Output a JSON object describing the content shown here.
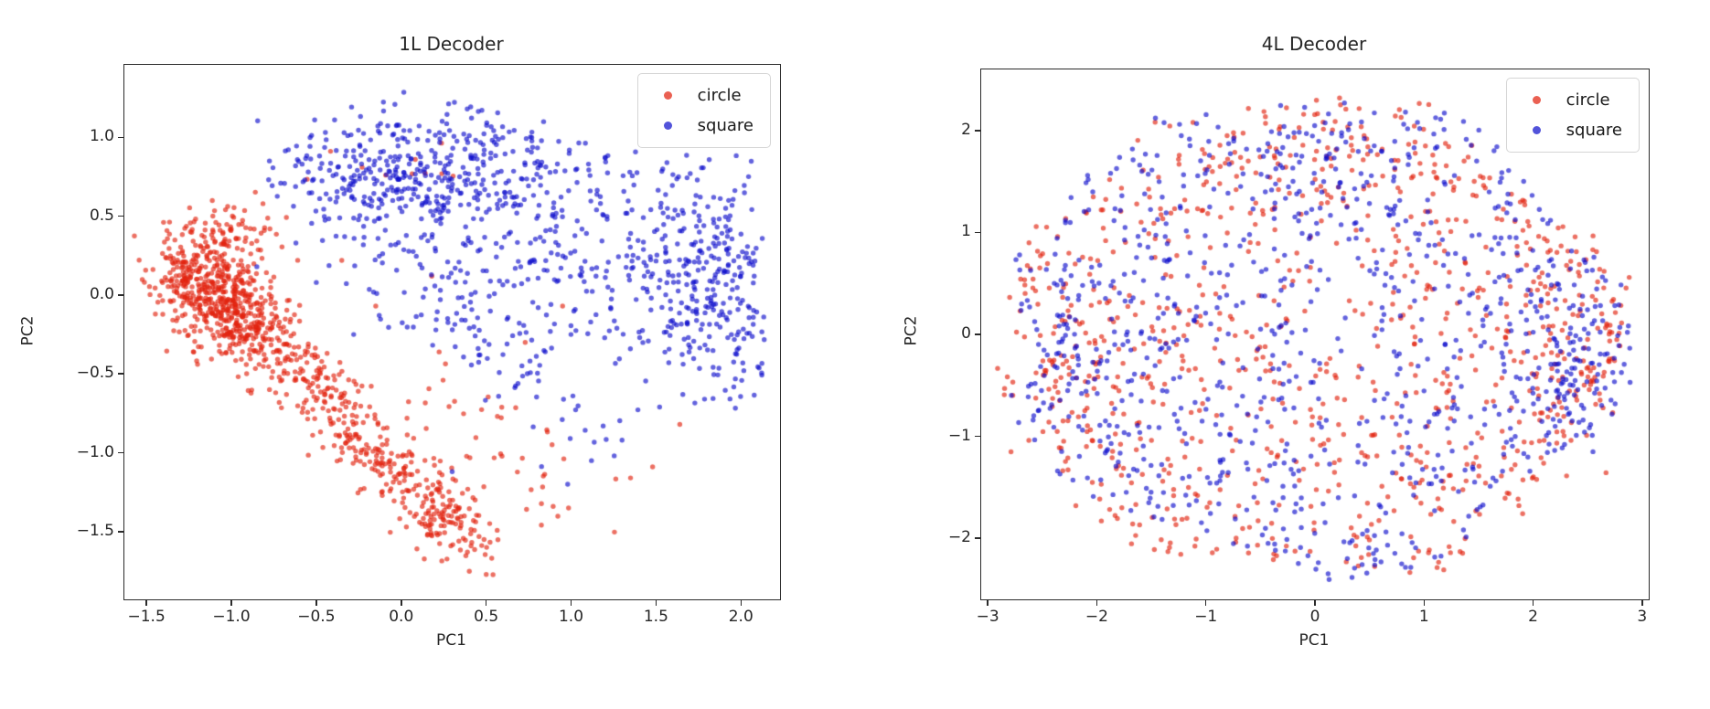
{
  "page": {
    "background": "#ffffff"
  },
  "chart_data": [
    {
      "type": "scatter",
      "title": "1L Decoder",
      "xlabel": "PC1",
      "ylabel": "PC2",
      "xlim": [
        -1.63,
        2.23
      ],
      "ylim": [
        -1.93,
        1.46
      ],
      "grid": false,
      "xticks": [
        {
          "v": -1.5,
          "label": "−1.5"
        },
        {
          "v": -1.0,
          "label": "−1.0"
        },
        {
          "v": -0.5,
          "label": "−0.5"
        },
        {
          "v": 0.0,
          "label": "0.0"
        },
        {
          "v": 0.5,
          "label": "0.5"
        },
        {
          "v": 1.0,
          "label": "1.0"
        },
        {
          "v": 1.5,
          "label": "1.5"
        },
        {
          "v": 2.0,
          "label": "2.0"
        }
      ],
      "yticks": [
        {
          "v": 1.0,
          "label": "1.0"
        },
        {
          "v": 0.5,
          "label": "0.5"
        },
        {
          "v": 0.0,
          "label": "0.0"
        },
        {
          "v": -0.5,
          "label": "−0.5"
        },
        {
          "v": -1.0,
          "label": "−1.0"
        },
        {
          "v": -1.5,
          "label": "−1.5"
        }
      ],
      "legend": {
        "position": "upper-right",
        "entries": [
          {
            "label": "circle",
            "color": "#e2230f"
          },
          {
            "label": "square",
            "color": "#0f10cc"
          }
        ]
      },
      "marker": {
        "radius": 2.7,
        "alpha": 0.65
      },
      "series": [
        {
          "name": "circle",
          "color": "#e2230f",
          "seed": 11,
          "summary": "dense blob near (-1.15,0.05) continuing as a diagonal band down to (0.45,-1.6), sparse spray to its right, few outliers inside blue cloud",
          "clusters": [
            {
              "kind": "gauss",
              "cx": -1.17,
              "cy": 0.1,
              "sx": 0.15,
              "sy": 0.16,
              "n": 320
            },
            {
              "kind": "gauss",
              "cx": -0.98,
              "cy": -0.1,
              "sx": 0.15,
              "sy": 0.14,
              "n": 170
            },
            {
              "kind": "gauss",
              "cx": -1.0,
              "cy": 0.42,
              "sx": 0.17,
              "sy": 0.1,
              "n": 50
            },
            {
              "kind": "band",
              "x1": -1.08,
              "y1": 0.0,
              "x2": 0.42,
              "y2": -1.6,
              "w": 0.11,
              "n": 560
            },
            {
              "kind": "band",
              "x1": 0.15,
              "y1": -0.5,
              "x2": 1.05,
              "y2": -1.38,
              "w": 0.17,
              "n": 42
            },
            {
              "kind": "rect",
              "x1": -0.65,
              "y1": 0.38,
              "x2": 0.35,
              "y2": 1.02,
              "n": 10
            },
            {
              "kind": "points",
              "pts": [
                [
                  0.95,
                  -0.07
                ],
                [
                  1.64,
                  -0.82
                ],
                [
                  1.48,
                  -1.09
                ],
                [
                  1.35,
                  -1.16
                ],
                [
                  0.73,
                  -0.3
                ],
                [
                  -0.35,
                  0.22
                ],
                [
                  0.18,
                  0.12
                ],
                [
                  -0.15,
                  -0.07
                ]
              ]
            }
          ]
        },
        {
          "name": "square",
          "color": "#0f10cc",
          "seed": 77,
          "summary": "large cloud filling upper right: dense ridge along top near y=0.8, broad disc centered (0.8,0.3), dense lobe at right edge near (1.85,0.0), sparse fringe below",
          "clusters": [
            {
              "kind": "gauss",
              "cx": 0.05,
              "cy": 0.78,
              "sx": 0.42,
              "sy": 0.21,
              "n": 350,
              "clip": [
                -0.85,
                0.32,
                1.0,
                1.3
              ]
            },
            {
              "kind": "blob",
              "cx": 0.78,
              "cy": 0.28,
              "rx": 1.18,
              "ry": 0.78,
              "exp": 0.62,
              "wobble": 0.05,
              "lobes": 4,
              "phase": 1.0,
              "n": 430
            },
            {
              "kind": "gauss",
              "cx": 1.83,
              "cy": 0.05,
              "sx": 0.21,
              "sy": 0.4,
              "n": 250,
              "clip": [
                1.3,
                -0.72,
                2.14,
                0.9
              ]
            },
            {
              "kind": "band",
              "x1": 0.45,
              "y1": -0.52,
              "x2": 1.42,
              "y2": -0.95,
              "w": 0.14,
              "n": 26
            },
            {
              "kind": "points",
              "pts": [
                [
                  -0.85,
                  0.18
                ],
                [
                  -0.62,
                  0.33
                ],
                [
                  -0.5,
                  0.08
                ],
                [
                  0.3,
                  -1.12
                ],
                [
                  0.98,
                  -1.2
                ],
                [
                  1.3,
                  -0.92
                ],
                [
                  1.12,
                  -1.05
                ],
                [
                  -0.28,
                  -0.25
                ]
              ]
            }
          ]
        }
      ]
    },
    {
      "type": "scatter",
      "title": "4L Decoder",
      "xlabel": "PC1",
      "ylabel": "PC2",
      "xlim": [
        -3.06,
        3.06
      ],
      "ylim": [
        -2.6,
        2.6
      ],
      "grid": false,
      "xticks": [
        {
          "v": -3,
          "label": "−3"
        },
        {
          "v": -2,
          "label": "−2"
        },
        {
          "v": -1,
          "label": "−1"
        },
        {
          "v": 0,
          "label": "0"
        },
        {
          "v": 1,
          "label": "1"
        },
        {
          "v": 2,
          "label": "2"
        },
        {
          "v": 3,
          "label": "3"
        }
      ],
      "yticks": [
        {
          "v": 2,
          "label": "2"
        },
        {
          "v": 1,
          "label": "1"
        },
        {
          "v": 0,
          "label": "0"
        },
        {
          "v": -1,
          "label": "−1"
        },
        {
          "v": -2,
          "label": "−2"
        }
      ],
      "legend": {
        "position": "upper-right",
        "entries": [
          {
            "label": "circle",
            "color": "#e2230f"
          },
          {
            "label": "square",
            "color": "#0f10cc"
          }
        ]
      },
      "marker": {
        "radius": 2.7,
        "alpha": 0.65
      },
      "series": [
        {
          "name": "circle",
          "color": "#e2230f",
          "seed": 23,
          "summary": "red and blue fully intermixed in one rim-dense irregular disc of radius ~2.6 centered near origin; extra dense patches at right edge, top arc and left edge",
          "clusters": [
            {
              "kind": "blob",
              "cx": 0.0,
              "cy": -0.1,
              "rx": 2.72,
              "ry": 2.3,
              "exp": 0.42,
              "wobble": 0.07,
              "lobes": 5,
              "phase": 0.7,
              "n": 760
            },
            {
              "kind": "gauss",
              "cx": 2.3,
              "cy": -0.2,
              "sx": 0.3,
              "sy": 0.52,
              "n": 80,
              "clip": [
                1.6,
                -1.4,
                2.95,
                1.0
              ]
            },
            {
              "kind": "gauss",
              "cx": 0.1,
              "cy": 1.85,
              "sx": 0.85,
              "sy": 0.28,
              "n": 55,
              "clip": [
                -1.8,
                1.2,
                1.9,
                2.35
              ]
            },
            {
              "kind": "gauss",
              "cx": -2.4,
              "cy": -0.15,
              "sx": 0.28,
              "sy": 0.6,
              "n": 55,
              "clip": [
                -2.95,
                -1.3,
                -1.8,
                0.8
              ]
            }
          ]
        },
        {
          "name": "square",
          "color": "#0f10cc",
          "seed": 91,
          "summary": "same mixed rim-dense disc as circle series; slightly heavier concentration at the right edge near (2.4,-0.25)",
          "clusters": [
            {
              "kind": "blob",
              "cx": 0.05,
              "cy": -0.05,
              "rx": 2.7,
              "ry": 2.28,
              "exp": 0.42,
              "wobble": 0.07,
              "lobes": 5,
              "phase": 2.3,
              "n": 760
            },
            {
              "kind": "gauss",
              "cx": 2.38,
              "cy": -0.25,
              "sx": 0.26,
              "sy": 0.5,
              "n": 105,
              "clip": [
                1.7,
                -1.5,
                2.95,
                0.9
              ]
            },
            {
              "kind": "gauss",
              "cx": -0.1,
              "cy": 1.8,
              "sx": 0.85,
              "sy": 0.3,
              "n": 55,
              "clip": [
                -1.9,
                1.15,
                1.8,
                2.3
              ]
            },
            {
              "kind": "gauss",
              "cx": -2.35,
              "cy": 0.0,
              "sx": 0.28,
              "sy": 0.55,
              "n": 55,
              "clip": [
                -2.9,
                -1.2,
                -1.7,
                0.9
              ]
            }
          ]
        }
      ]
    }
  ]
}
